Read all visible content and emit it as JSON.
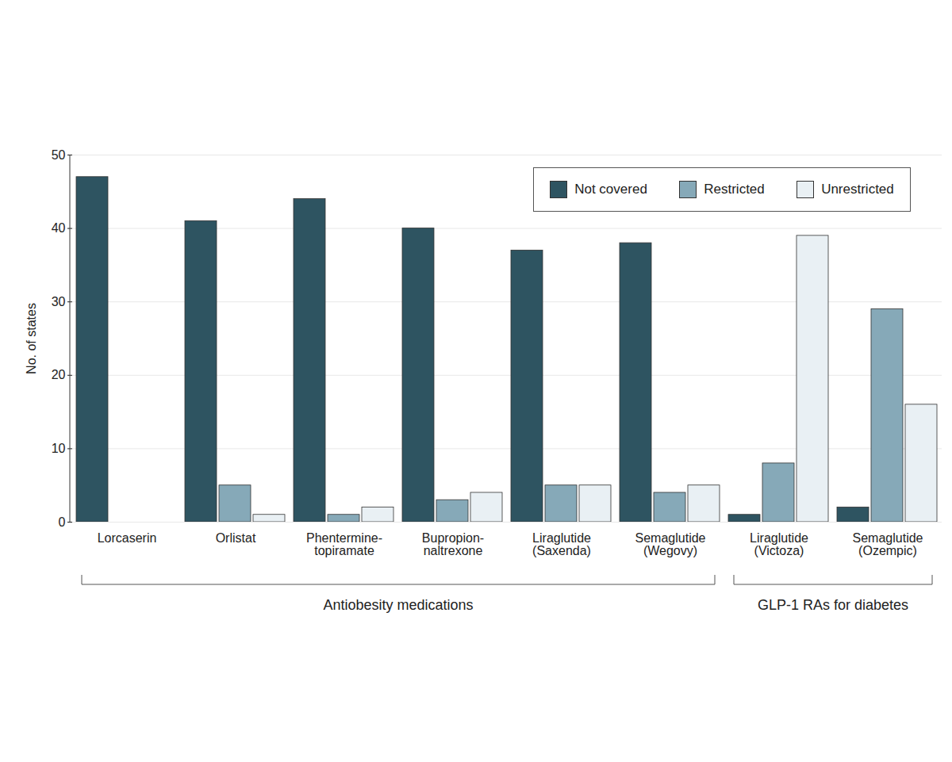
{
  "chart_data": {
    "type": "bar",
    "categories": [
      "Lorcaserin",
      "Orlistat",
      "Phentermine-topiramate",
      "Bupropion-naltrexone",
      "Liraglutide (Saxenda)",
      "Semaglutide (Wegovy)",
      "Liraglutide (Victoza)",
      "Semaglutide (Ozempic)"
    ],
    "series": [
      {
        "name": "Not covered",
        "color": "#2e5461",
        "values": [
          47,
          41,
          44,
          40,
          37,
          38,
          1,
          2
        ]
      },
      {
        "name": "Restricted",
        "color": "#86a9b8",
        "values": [
          0,
          5,
          1,
          3,
          5,
          4,
          8,
          29
        ]
      },
      {
        "name": "Unrestricted",
        "color": "#e9f0f4",
        "values": [
          0,
          1,
          2,
          4,
          5,
          5,
          39,
          16
        ]
      }
    ],
    "ylabel": "No. of states",
    "ylim": [
      0,
      50
    ],
    "yticks": [
      0,
      10,
      20,
      30,
      40,
      50
    ],
    "grid": true,
    "legend": "top-right",
    "groups": [
      {
        "label": "Antiobesity medications",
        "categories": [
          "Lorcaserin",
          "Orlistat",
          "Phentermine-topiramate",
          "Bupropion-naltrexone",
          "Liraglutide (Saxenda)",
          "Semaglutide (Wegovy)"
        ]
      },
      {
        "label": "GLP-1 RAs for diabetes",
        "categories": [
          "Liraglutide (Victoza)",
          "Semaglutide (Ozempic)"
        ]
      }
    ]
  }
}
